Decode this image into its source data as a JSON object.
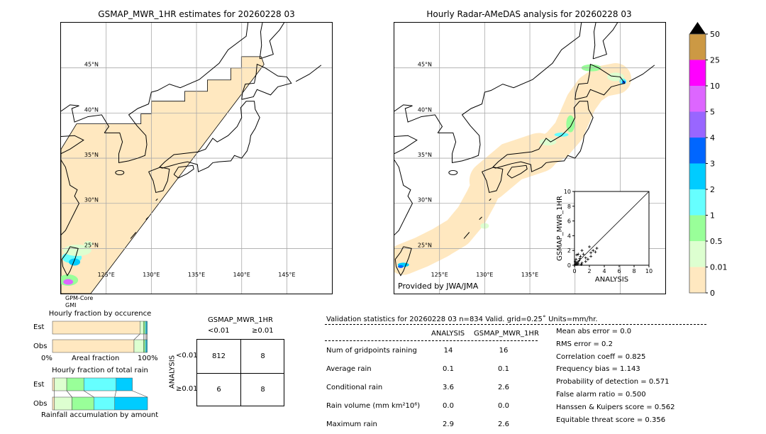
{
  "left_map": {
    "title": "GSMAP_MWR_1HR estimates for 20260228 03",
    "sensor_line1": "GPM-Core",
    "sensor_line2": "GMI",
    "lat_labels": [
      "45°N",
      "40°N",
      "35°N",
      "30°N",
      "25°N"
    ],
    "lon_labels": [
      "125°E",
      "130°E",
      "135°E",
      "140°E",
      "145°E"
    ]
  },
  "right_map": {
    "title": "Hourly Radar-AMeDAS analysis for 20260228 03",
    "credit": "Provided by JWA/JMA",
    "lat_labels": [
      "45°N",
      "40°N",
      "35°N",
      "30°N",
      "25°N"
    ],
    "lon_labels": [
      "125°E",
      "130°E",
      "135°E"
    ]
  },
  "colorbar": {
    "labels": [
      "0",
      "0.01",
      "0.5",
      "1",
      "2",
      "3",
      "4",
      "5",
      "10",
      "25",
      "50"
    ],
    "colors": [
      "#ffe8c0",
      "#ddffd0",
      "#99ff99",
      "#66ffff",
      "#00ccff",
      "#0066ff",
      "#9966ff",
      "#dd66ff",
      "#ff00ff",
      "#cc9944"
    ],
    "extend_color": "#000000"
  },
  "occurrence_chart": {
    "title": "Hourly fraction by occurence",
    "row_labels": [
      "Est",
      "Obs"
    ],
    "xlabel": "Areal fraction",
    "x_min_label": "0%",
    "x_max_label": "100%"
  },
  "rain_chart": {
    "title": "Hourly fraction of total rain",
    "row_labels": [
      "Est",
      "Obs"
    ],
    "xlabel": "Rainfall accumulation by amount"
  },
  "contingency": {
    "col_header": "GSMAP_MWR_1HR",
    "col_labels": [
      "<0.01",
      "≥0.01"
    ],
    "row_header": "ANALYSIS",
    "row_labels": [
      "<0.01",
      "≥0.01"
    ],
    "cells": [
      [
        "812",
        "8"
      ],
      [
        "6",
        "8"
      ]
    ]
  },
  "stats": {
    "header": "Validation statistics for 20260228 03  n=834 Valid. grid=0.25˚ Units=mm/hr.",
    "col_headers": [
      "ANALYSIS",
      "GSMAP_MWR_1HR"
    ],
    "rows": [
      {
        "label": "Num of gridpoints raining",
        "analysis": "14",
        "gsmap": "16"
      },
      {
        "label": "Average rain",
        "analysis": "0.1",
        "gsmap": "0.1"
      },
      {
        "label": "Conditional rain",
        "analysis": "3.6",
        "gsmap": "2.6"
      },
      {
        "label": "Rain volume (mm km²10⁶)",
        "analysis": "0.0",
        "gsmap": "0.0"
      },
      {
        "label": "Maximum rain",
        "analysis": "2.9",
        "gsmap": "2.6"
      }
    ],
    "scores": [
      "Mean abs error =    0.0",
      "RMS error =    0.2",
      "Correlation coeff =  0.825",
      "Frequency bias =  1.143",
      "Probability of detection =  0.571",
      "False alarm ratio =  0.500",
      "Hanssen & Kuipers score =  0.562",
      "Equitable threat score =  0.356"
    ]
  },
  "chart_data": [
    {
      "type": "scatter",
      "xlabel": "ANALYSIS",
      "ylabel": "GSMAP_MWR_1HR",
      "xlim": [
        0,
        10
      ],
      "ylim": [
        0,
        10
      ],
      "ticks": [
        0,
        2,
        4,
        6,
        8,
        10
      ],
      "marker": "+",
      "diagonal": true,
      "points": [
        [
          0.1,
          0.1
        ],
        [
          0.2,
          0.3
        ],
        [
          0.3,
          0.1
        ],
        [
          0.1,
          0.5
        ],
        [
          0.4,
          0.4
        ],
        [
          0.2,
          0.8
        ],
        [
          0.5,
          0.2
        ],
        [
          0.3,
          1.4
        ],
        [
          0.5,
          1.5
        ],
        [
          0.8,
          1.2
        ],
        [
          0.6,
          0.6
        ],
        [
          1.0,
          0.3
        ],
        [
          1.0,
          2.0
        ],
        [
          1.2,
          1.5
        ],
        [
          1.5,
          1.0
        ],
        [
          1.5,
          0.5
        ],
        [
          1.8,
          0.8
        ],
        [
          2.0,
          2.5
        ],
        [
          2.2,
          1.7
        ],
        [
          2.2,
          1.2
        ],
        [
          2.5,
          2.0
        ],
        [
          2.8,
          1.8
        ],
        [
          3.0,
          2.3
        ],
        [
          0.7,
          0.9
        ],
        [
          0.9,
          0.1
        ]
      ]
    },
    {
      "type": "bar",
      "orientation": "horizontal-stacked",
      "title": "Hourly fraction by occurence",
      "categories": [
        "Est",
        "Obs"
      ],
      "unit": "percent",
      "series": [
        {
          "color": "#ffe8c0",
          "values": [
            92,
            85.8
          ]
        },
        {
          "color": "#ddffd0",
          "values": [
            3.7,
            10
          ]
        },
        {
          "color": "#99ff99",
          "values": [
            1.8,
            1.7
          ]
        },
        {
          "color": "#66ffff",
          "values": [
            1.2,
            1.2
          ]
        },
        {
          "color": "#00ccff",
          "values": [
            1.0,
            1.0
          ]
        }
      ]
    },
    {
      "type": "bar",
      "orientation": "horizontal-stacked",
      "title": "Hourly fraction of total rain",
      "categories": [
        "Est",
        "Obs"
      ],
      "unit": "percent",
      "series": [
        {
          "color": "#ffe8c0",
          "values": [
            2,
            2
          ]
        },
        {
          "color": "#ddffd0",
          "values": [
            13,
            18.5
          ]
        },
        {
          "color": "#99ff99",
          "values": [
            18,
            23
          ]
        },
        {
          "color": "#66ffff",
          "values": [
            34,
            22
          ]
        },
        {
          "color": "#00ccff",
          "values": [
            17,
            34.5
          ]
        }
      ]
    }
  ]
}
